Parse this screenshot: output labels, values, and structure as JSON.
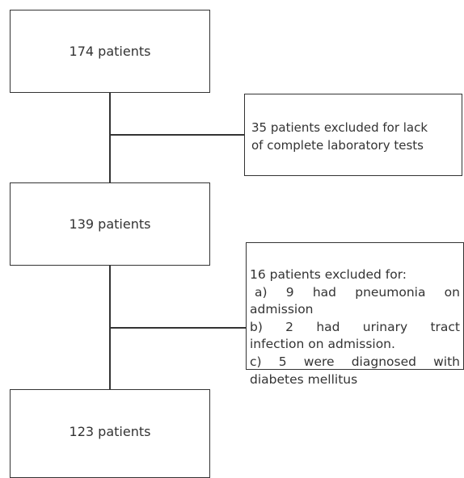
{
  "flowchart": {
    "box1": {
      "text": "174 patients"
    },
    "exclusion1": {
      "line1": "35 patients excluded for lack",
      "line2": "of complete laboratory tests"
    },
    "box2": {
      "text": "139 patients"
    },
    "exclusion2": {
      "header": "16 patients excluded for:",
      "a_line1": "a)  9  had  pneumonia  on",
      "a_line2": "admission",
      "b_line1": "b)  2  had  urinary  tract",
      "b_line2": "infection on admission.",
      "c_line1": "c) 5 were diagnosed with",
      "c_line2": "diabetes mellitus"
    },
    "box3": {
      "text": "123 patients"
    }
  }
}
